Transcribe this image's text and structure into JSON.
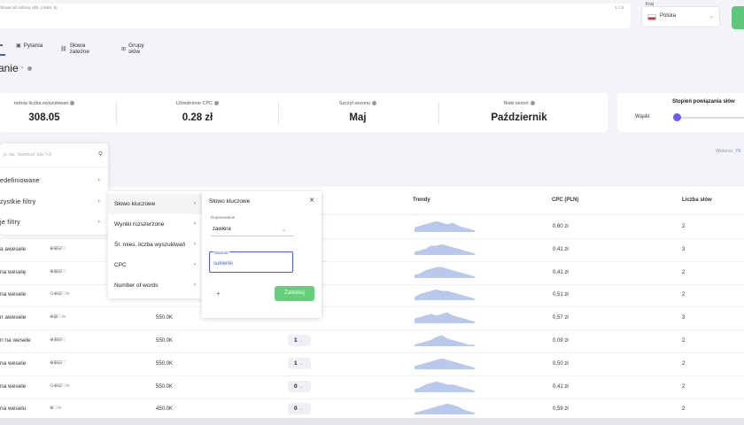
{
  "search": {
    "hint": "Słowa tub adresy URL (maks. 5)",
    "count": "1 z 5"
  },
  "country": {
    "label": "Kraj",
    "name": "Polska"
  },
  "tabs": [
    {
      "label": "",
      "icon": "list-icon"
    },
    {
      "label": "Pytania",
      "icon": "question-icon"
    },
    {
      "label": "Słowa zależne",
      "icon": "link-icon"
    },
    {
      "label": "Grupy słów",
      "icon": "group-icon"
    }
  ],
  "page": {
    "title": "anie"
  },
  "stats": [
    {
      "label": "rednia liczba wyszukiwań",
      "value": "308.05"
    },
    {
      "label": "Uśrednione CPC",
      "value": "0.28 zł"
    },
    {
      "label": "Szczyt sezonu",
      "value": "Maj"
    },
    {
      "label": "Niski sezon",
      "value": "Październik"
    }
  ],
  "relation": {
    "title": "Stopień powiązania słów",
    "min": "Wąski"
  },
  "widzisz": {
    "label": "Widzisz:",
    "value": "78"
  },
  "table": {
    "headers": {
      "trend": "Trendy",
      "cpc": "CPC (PLN)",
      "count": "Liczba słów"
    },
    "rows": [
      {
        "keyword": "",
        "icons": "",
        "volume": "",
        "kd": "",
        "cpc": "0,60 zł",
        "count": "2",
        "trend": [
          3,
          4,
          5,
          6,
          7,
          6,
          5,
          6,
          4,
          3,
          2,
          1
        ]
      },
      {
        "keyword": "a awesele",
        "icons": "⊕⊞⊟♡",
        "volume": "",
        "kd": "",
        "cpc": "0,41 zł",
        "count": "3",
        "trend": [
          2,
          3,
          4,
          6,
          6,
          7,
          6,
          5,
          4,
          3,
          2,
          1
        ]
      },
      {
        "keyword": "na weselę",
        "icons": "⊕⊞⊟♡",
        "volume": "",
        "kd": "",
        "cpc": "0,41 zł",
        "count": "2",
        "trend": [
          2,
          3,
          5,
          6,
          7,
          7,
          6,
          5,
          4,
          3,
          2,
          1
        ]
      },
      {
        "keyword": "na wesele",
        "icons": "⊙⊕⊟♡∞",
        "volume": "",
        "kd": "",
        "cpc": "0,51 zł",
        "count": "2",
        "trend": [
          2,
          4,
          5,
          6,
          7,
          6,
          6,
          5,
          4,
          3,
          2,
          1
        ]
      },
      {
        "keyword": "n awesele",
        "icons": "⊕⊞♡∞",
        "volume": "550.0K",
        "kd": "",
        "cpc": "0,57 zł",
        "count": "3",
        "trend": [
          3,
          4,
          5,
          6,
          5,
          6,
          7,
          5,
          4,
          3,
          2,
          1
        ]
      },
      {
        "keyword": "n na wesele",
        "icons": "⊕⊞⊟♡",
        "volume": "550.0K",
        "kd": "1",
        "cpc": "0,09 zł",
        "count": "2",
        "trend": [
          1,
          2,
          3,
          4,
          6,
          7,
          5,
          4,
          3,
          2,
          1,
          1
        ]
      },
      {
        "keyword": "na wesele",
        "icons": "⊕⊞⊟♡",
        "volume": "550.0K",
        "kd": "1",
        "cpc": "0,50 zł",
        "count": "2",
        "trend": [
          2,
          3,
          4,
          5,
          6,
          7,
          6,
          5,
          4,
          3,
          2,
          1
        ]
      },
      {
        "keyword": "na wesele",
        "icons": "⊙⊕⊟♡∞",
        "volume": "550.0K",
        "kd": "0",
        "cpc": "0,41 zł",
        "count": "2",
        "trend": [
          2,
          3,
          5,
          6,
          7,
          6,
          5,
          5,
          4,
          3,
          2,
          1
        ]
      },
      {
        "keyword": "na weselu",
        "icons": "⊕♡∞",
        "volume": "450.0K",
        "kd": "0",
        "cpc": "0,59 zł",
        "count": "2",
        "trend": [
          1,
          2,
          3,
          4,
          5,
          6,
          7,
          6,
          5,
          3,
          2,
          1
        ]
      }
    ]
  },
  "filter_menu": {
    "search_placeholder": "p. np. 'kosmos' lub '<3",
    "items": [
      "edefiniowane",
      "zystkie filtry",
      "je filtry"
    ]
  },
  "submenu": {
    "items": [
      "Słowo kluczowe",
      "Wyniki rozszerzone",
      "Śr. mies. liczba wyszukiwań",
      "CPC",
      "Number of words"
    ]
  },
  "panel": {
    "title": "Słowo kluczowe",
    "operator_label": "Dopasowanie",
    "operator_value": "zawiera",
    "value_label": "Wartość",
    "value": "sukienki",
    "add": "+",
    "apply": "Zastosuj"
  },
  "colors": {
    "accent": "#6b5cf6",
    "green": "#67cf7c",
    "trend": "#b9c9ee"
  }
}
